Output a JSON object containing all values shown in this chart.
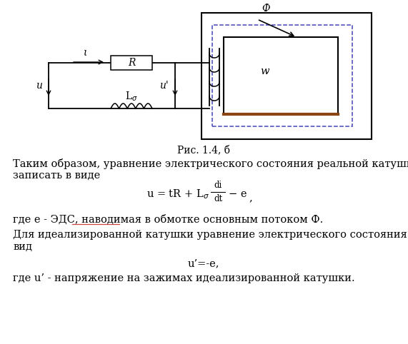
{
  "caption": "Рис. 1.4, б",
  "para1_line1": "Таким образом, уравнение электрического состояния реальной катушки можно",
  "para1_line2": "записать в виде",
  "para2": "где e - ЭДС, наводимая в обмотке основным потоком Ф.",
  "para3_line1": "Для идеализированной катушки уравнение электрического состояния примет",
  "para3_line2": "вид",
  "formula2": "u’=-e,",
  "para4": "где u’ - напряжение на зажимах идеализированной катушки.",
  "bg_color": "#ffffff",
  "text_color": "#000000",
  "underline_color": "#cc4444",
  "circuit_color": "#000000",
  "blue_dash_color": "#4444bb",
  "brown_color": "#8B4513"
}
